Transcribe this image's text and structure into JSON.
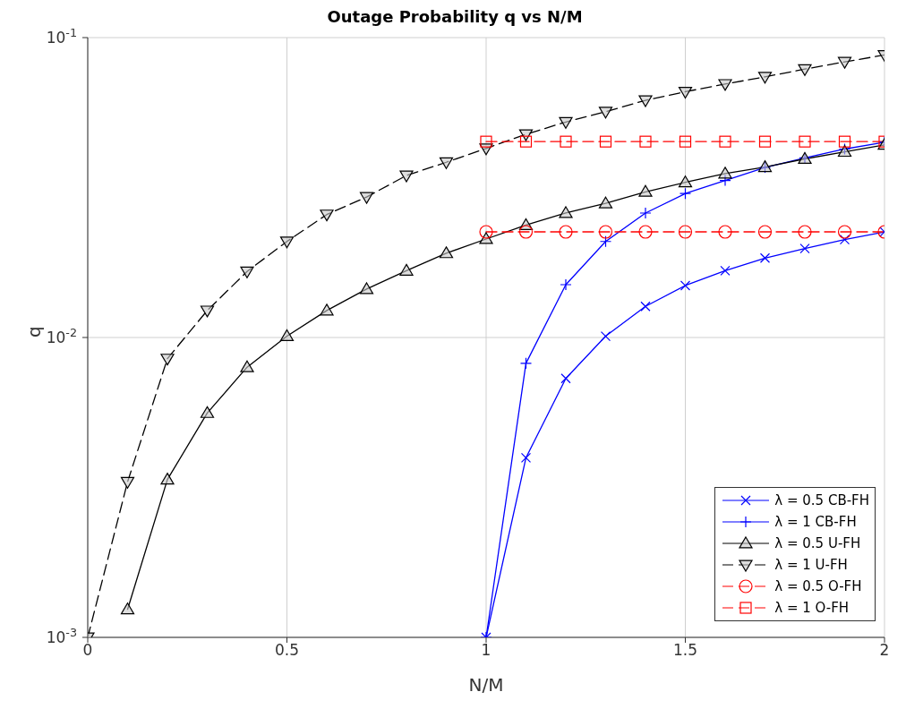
{
  "chart_data": {
    "type": "line",
    "title": "Outage Probability q vs N/M",
    "xlabel": "N/M",
    "ylabel": "q",
    "log": "y",
    "grid": true,
    "legend": "bottom right",
    "x": [
      0,
      0.1,
      0.2,
      0.3,
      0.4,
      0.5,
      0.6,
      0.7,
      0.8,
      0.9,
      1,
      1.1,
      1.2,
      1.3,
      1.4,
      1.5,
      1.6,
      1.7,
      1.8,
      1.9,
      2
    ],
    "xlim": [
      0,
      2
    ],
    "xticks": [
      0,
      0.5,
      1,
      1.5,
      2
    ],
    "ylim": [
      0.001,
      0.1
    ],
    "yticks": [
      {
        "value": 0.001,
        "label": "10$^{-3}$"
      },
      {
        "value": 0.01,
        "label": "10$^{-2}$"
      },
      {
        "value": 0.1,
        "label": "10$^{-1}$"
      }
    ],
    "series": [
      {
        "name": "λ = 0.5 CB-FH",
        "color": "#0000ff",
        "marker": "x",
        "line_style": "solid",
        "values": [
          null,
          null,
          null,
          null,
          null,
          null,
          null,
          null,
          null,
          null,
          0.001,
          0.00397,
          0.0073,
          0.0101,
          0.0127,
          0.0149,
          0.0167,
          0.0184,
          0.0198,
          0.0212,
          0.0225
        ]
      },
      {
        "name": "λ = 1 CB-FH",
        "color": "#0000ff",
        "marker": "plus",
        "line_style": "solid",
        "values": [
          null,
          null,
          null,
          null,
          null,
          null,
          null,
          null,
          null,
          null,
          0.001,
          0.0082,
          0.015,
          0.0209,
          0.026,
          0.0302,
          0.0334,
          0.0369,
          0.0397,
          0.0425,
          0.0448
        ]
      },
      {
        "name": "λ = 0.5 U-FH",
        "color": "#000000",
        "marker": "triangle",
        "line_style": "solid",
        "values": [
          null,
          0.00124,
          0.00336,
          0.0056,
          0.00796,
          0.0101,
          0.0123,
          0.0145,
          0.0167,
          0.0191,
          0.0213,
          0.0237,
          0.026,
          0.028,
          0.0306,
          0.0329,
          0.0352,
          0.037,
          0.0394,
          0.0416,
          0.0439
        ]
      },
      {
        "name": "λ = 1 U-FH",
        "color": "#000000",
        "marker": "triangle-down",
        "line_style": "dashed",
        "values": [
          0.001,
          0.0033,
          0.0085,
          0.0123,
          0.0166,
          0.0209,
          0.0257,
          0.0294,
          0.0347,
          0.0384,
          0.0427,
          0.0476,
          0.0523,
          0.0566,
          0.0618,
          0.066,
          0.07,
          0.074,
          0.0785,
          0.083,
          0.0875
        ]
      },
      {
        "name": "λ = 0.5 O-FH",
        "color": "#ff0000",
        "marker": "circle",
        "line_style": "dashed",
        "values": [
          null,
          null,
          null,
          null,
          null,
          null,
          null,
          null,
          null,
          null,
          0.0225,
          0.0225,
          0.0225,
          0.0225,
          0.0225,
          0.0225,
          0.0225,
          0.0225,
          0.0225,
          0.0225,
          0.0225
        ]
      },
      {
        "name": "λ = 1 O-FH",
        "color": "#ff0000",
        "marker": "square",
        "line_style": "dashed",
        "values": [
          null,
          null,
          null,
          null,
          null,
          null,
          null,
          null,
          null,
          null,
          0.045,
          0.045,
          0.045,
          0.045,
          0.045,
          0.045,
          0.045,
          0.045,
          0.045,
          0.045,
          0.045
        ]
      }
    ]
  }
}
